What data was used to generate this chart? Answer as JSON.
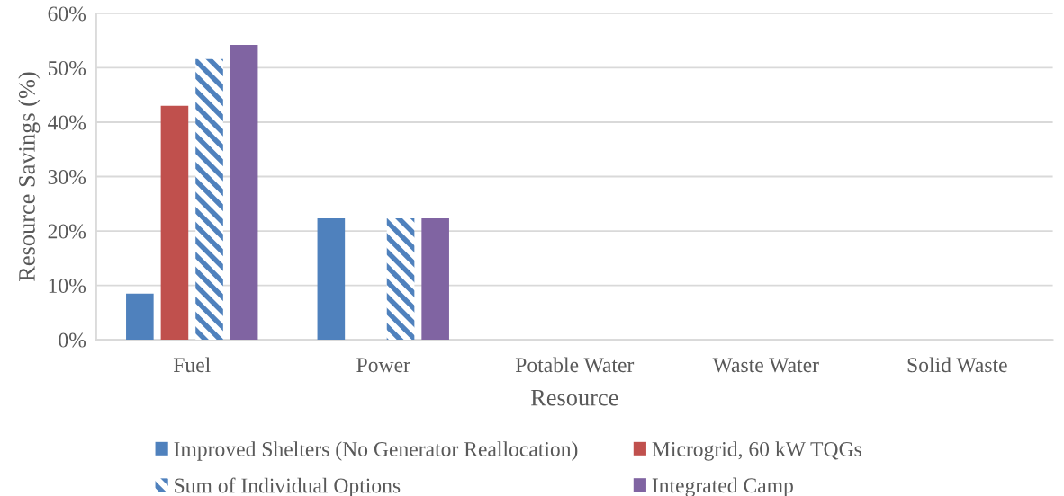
{
  "chart_data": {
    "type": "bar",
    "xlabel": "Resource",
    "ylabel": "Resource Savings (%)",
    "categories": [
      "Fuel",
      "Power",
      "Potable Water",
      "Waste Water",
      "Solid Waste"
    ],
    "series": [
      {
        "name": "Improved Shelters (No Generator Reallocation)",
        "color": "#4f81bd",
        "values": [
          8.5,
          22.3,
          0,
          0,
          0
        ]
      },
      {
        "name": "Microgrid, 60 kW TQGs",
        "color": "#c0504d",
        "values": [
          43.0,
          0,
          0,
          0,
          0
        ]
      },
      {
        "name": "Sum of Individual Options",
        "color": "#4f81bd",
        "values": [
          51.6,
          22.3,
          0,
          0,
          0
        ]
      },
      {
        "name": "Integrated Camp",
        "color": "#8064a2",
        "values": [
          54.2,
          22.3,
          0,
          0,
          0
        ]
      }
    ],
    "ylim": [
      0,
      60
    ],
    "yticks": [
      {
        "value": 0,
        "label": "0%"
      },
      {
        "value": 10,
        "label": "10%"
      },
      {
        "value": 20,
        "label": "20%"
      },
      {
        "value": 30,
        "label": "30%"
      },
      {
        "value": 40,
        "label": "40%"
      },
      {
        "value": 50,
        "label": "50%"
      },
      {
        "value": 60,
        "label": "60%"
      }
    ],
    "grid": "y",
    "legend": "bottom"
  }
}
